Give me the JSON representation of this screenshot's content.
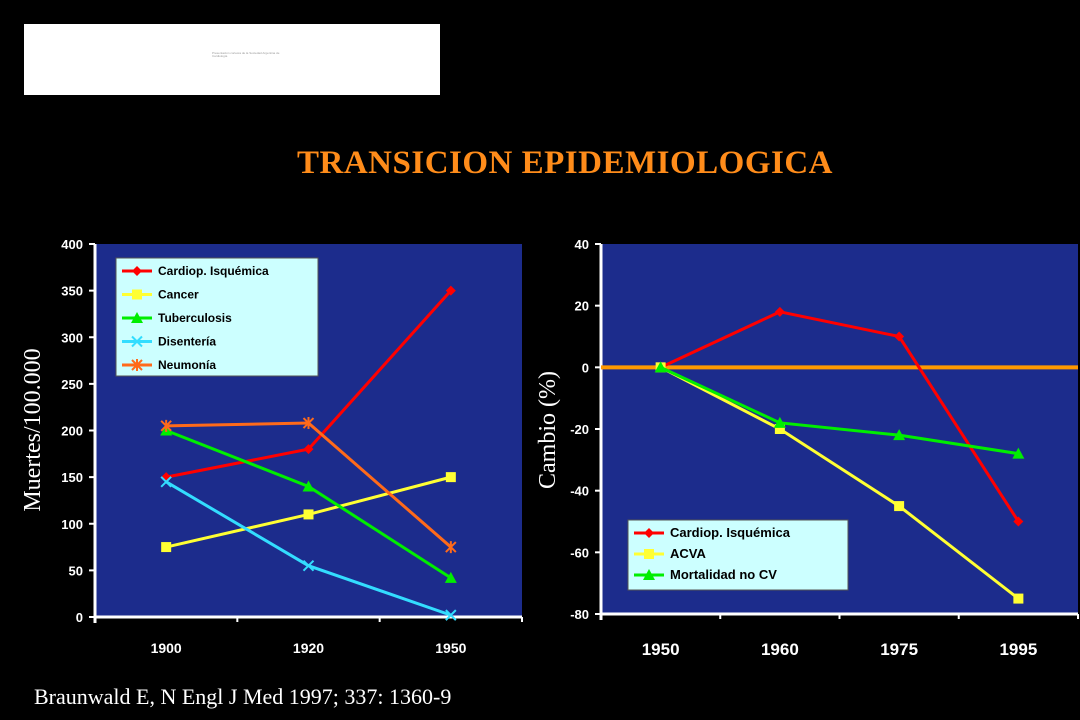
{
  "slide": {
    "title": "TRANSICION EPIDEMIOLOGICA",
    "citation": "Braunwald E, N Engl J Med 1997; 337: 1360-9",
    "logo_text": "Presentación cortesía de la Sociedad Argentina de Cardiología"
  },
  "colors": {
    "background": "#000000",
    "plot_bg": "#1c2c8c",
    "title": "#ff8c1a",
    "legend_bg": "#ccffff",
    "red": "#ff0000",
    "yellow": "#ffff33",
    "green": "#00ee00",
    "cyan": "#33ddff",
    "orange": "#ff6a1a",
    "zero_line": "#ff9900"
  },
  "chart_data": [
    {
      "type": "line",
      "title": "",
      "xlabel": "",
      "ylabel": "Muertes/100.000",
      "categories": [
        "1900",
        "1920",
        "1950"
      ],
      "ylim": [
        0,
        400
      ],
      "yticks": [
        0,
        50,
        100,
        150,
        200,
        250,
        300,
        350,
        400
      ],
      "legend_position": "top-left",
      "grid": false,
      "series": [
        {
          "name": "Cardiop. Isquémica",
          "values": [
            150,
            180,
            350
          ],
          "color": "#ff0000",
          "marker": "diamond"
        },
        {
          "name": "Cancer",
          "values": [
            75,
            110,
            150
          ],
          "color": "#ffff33",
          "marker": "square"
        },
        {
          "name": "Tuberculosis",
          "values": [
            200,
            140,
            42
          ],
          "color": "#00ee00",
          "marker": "triangle"
        },
        {
          "name": "Disentería",
          "values": [
            145,
            55,
            2
          ],
          "color": "#33ddff",
          "marker": "x"
        },
        {
          "name": "Neumonía",
          "values": [
            205,
            208,
            75
          ],
          "color": "#ff6a1a",
          "marker": "star"
        }
      ]
    },
    {
      "type": "line",
      "title": "",
      "xlabel": "",
      "ylabel": "Cambio (%)",
      "categories": [
        "1950",
        "1960",
        "1975",
        "1995"
      ],
      "ylim": [
        -80,
        40
      ],
      "yticks": [
        -80,
        -60,
        -40,
        -20,
        0,
        20,
        40
      ],
      "legend_position": "bottom-center",
      "grid": false,
      "reference_line": 0,
      "series": [
        {
          "name": "Cardiop. Isquémica",
          "values": [
            0,
            18,
            10,
            -50
          ],
          "color": "#ff0000",
          "marker": "diamond"
        },
        {
          "name": "ACVA",
          "values": [
            0,
            -20,
            -45,
            -75
          ],
          "color": "#ffff33",
          "marker": "square"
        },
        {
          "name": "Mortalidad no CV",
          "values": [
            0,
            -18,
            -22,
            -28
          ],
          "color": "#00ee00",
          "marker": "triangle"
        }
      ]
    }
  ]
}
